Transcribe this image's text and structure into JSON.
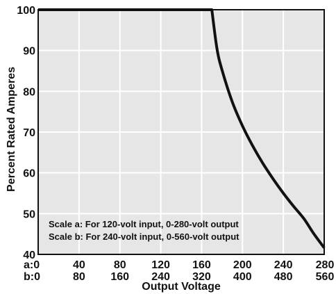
{
  "chart_data": {
    "type": "line",
    "title": "",
    "xlabel": "Output Voltage",
    "ylabel": "Percent Rated Amperes",
    "xlim": [
      0,
      280
    ],
    "ylim": [
      40,
      100
    ],
    "x_ticks_a": [
      "a:0",
      "40",
      "80",
      "120",
      "160",
      "200",
      "240",
      "280"
    ],
    "x_ticks_b": [
      "b:0",
      "80",
      "160",
      "240",
      "320",
      "400",
      "480",
      "560"
    ],
    "y_ticks": [
      "40",
      "50",
      "60",
      "70",
      "80",
      "90",
      "100"
    ],
    "x_grid_values": [
      40,
      80,
      120,
      160,
      200,
      240
    ],
    "y_grid_values": [
      50,
      60,
      70,
      80,
      90
    ],
    "grid": true,
    "series": [
      {
        "x": [
          0,
          170,
          175,
          180,
          190,
          200,
          210,
          220,
          230,
          240,
          250,
          260,
          270,
          280
        ],
        "y": [
          100,
          100,
          90.5,
          85.2,
          77.4,
          71.5,
          66.6,
          62.3,
          58.5,
          55.0,
          51.8,
          48.8,
          45.0,
          41.6
        ]
      }
    ],
    "annotations": [
      "Scale a: For 120-volt input, 0-280-volt output",
      "Scale b: For 240-volt input, 0-560-volt output"
    ]
  },
  "colors": {
    "plot_background": "#e6e6e6",
    "grid": "#ffffff",
    "line": "#111111",
    "frame": "#111111"
  }
}
